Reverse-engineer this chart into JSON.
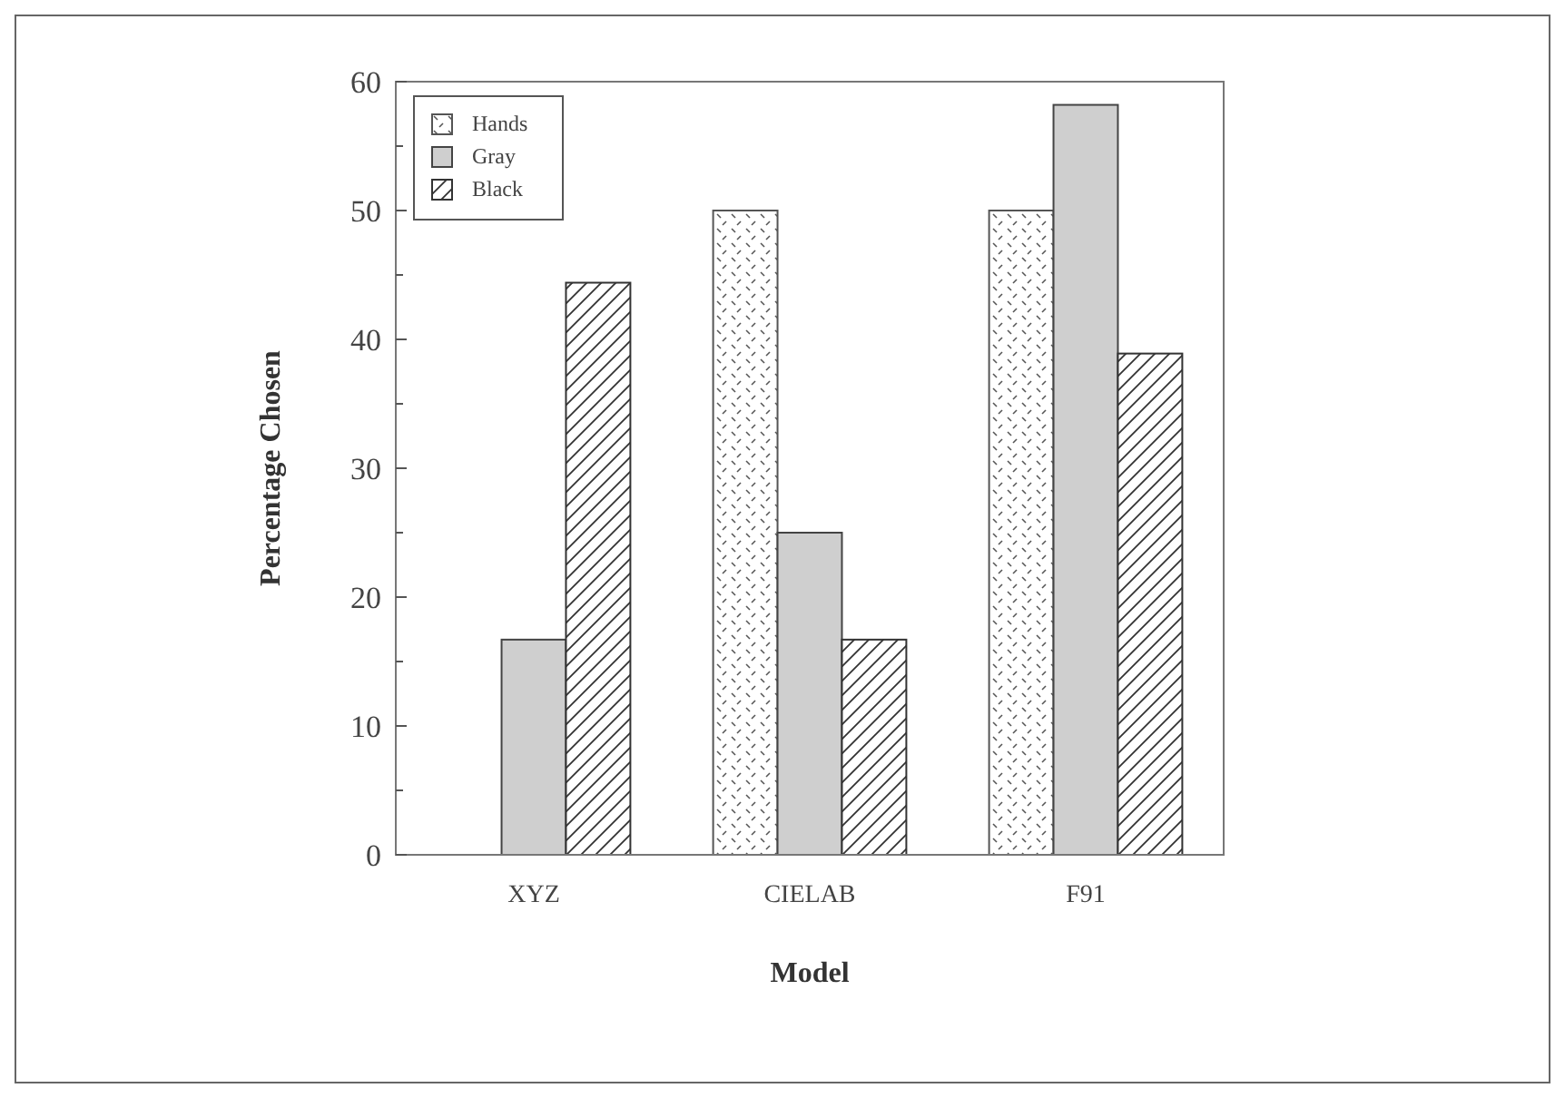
{
  "chart_data": {
    "type": "bar",
    "xlabel": "Model",
    "ylabel": "Percentage Chosen",
    "categories": [
      "XYZ",
      "CIELAB",
      "F91"
    ],
    "series": [
      {
        "name": "Hands",
        "color": "#555555",
        "values": [
          0,
          50,
          50
        ]
      },
      {
        "name": "Gray",
        "color": "#cfcfcf",
        "values": [
          16.7,
          25,
          58.2
        ]
      },
      {
        "name": "Black",
        "color": "#333333",
        "values": [
          44.4,
          16.7,
          38.9
        ]
      }
    ],
    "ylim": [
      0,
      60
    ],
    "yticks": [
      0,
      {
        "value": 5,
        "label": null
      },
      10,
      {
        "value": 15,
        "label": null
      },
      20,
      {
        "value": 25,
        "label": null
      },
      30,
      {
        "value": 35,
        "label": null
      },
      40,
      {
        "value": 45,
        "label": null
      },
      50,
      {
        "value": 55,
        "label": null
      },
      60
    ],
    "grid": false,
    "legend": "top left"
  }
}
